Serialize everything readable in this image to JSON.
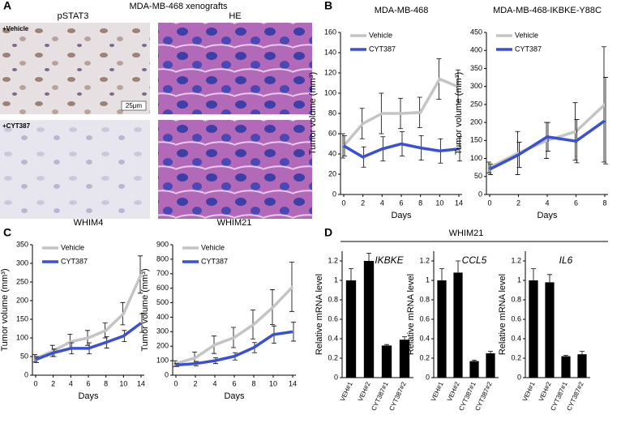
{
  "figure": {
    "panel_labels": [
      "A",
      "B",
      "C",
      "D"
    ],
    "panel_a": {
      "title": "MDA-MB-468 xenografts",
      "columns": [
        "pSTAT3",
        "HE"
      ],
      "rows": [
        "+Vehicle",
        "+CYT387"
      ],
      "scale_bar": "25μm"
    },
    "panel_d_title": "WHIM21"
  },
  "chart_data": [
    {
      "type": "line",
      "title": "MDA-MB-468",
      "x_label": "Days",
      "y_label": "Tumor volume (mm³)",
      "categories": [
        "0",
        "2",
        "4",
        "6",
        "8",
        "10",
        "14"
      ],
      "ylim": [
        0,
        160
      ],
      "yticks": [
        0,
        20,
        40,
        60,
        80,
        100,
        120,
        140,
        160
      ],
      "series": [
        {
          "name": "Vehicle",
          "color": "#c4c4c4",
          "values": [
            48,
            70,
            80,
            80,
            81,
            114,
            106
          ],
          "errors": [
            12,
            15,
            20,
            15,
            15,
            20,
            17
          ]
        },
        {
          "name": "CYT387",
          "color": "#3a4fd8",
          "values": [
            48,
            37,
            45,
            50,
            46,
            43,
            45
          ],
          "errors": [
            10,
            10,
            12,
            12,
            12,
            12,
            12
          ]
        }
      ]
    },
    {
      "type": "line",
      "title": "MDA-MB-468-IKBKE-Y88C",
      "x_label": "Days",
      "y_label": "Tumor volume (mm³)",
      "categories": [
        "0",
        "2",
        "4",
        "6",
        "8"
      ],
      "ylim": [
        0,
        450
      ],
      "yticks": [
        0,
        50,
        100,
        150,
        200,
        250,
        300,
        350,
        400,
        450
      ],
      "series": [
        {
          "name": "Vehicle",
          "color": "#c4c4c4",
          "values": [
            75,
            115,
            150,
            175,
            250
          ],
          "errors": [
            15,
            60,
            50,
            80,
            160
          ]
        },
        {
          "name": "CYT387",
          "color": "#3a4fd8",
          "values": [
            70,
            110,
            160,
            148,
            205
          ],
          "errors": [
            15,
            35,
            40,
            60,
            120
          ]
        }
      ]
    },
    {
      "type": "line",
      "title": "WHIM4",
      "x_label": "Days",
      "y_label": "Tumor volume (mm³)",
      "categories": [
        "0",
        "2",
        "4",
        "6",
        "8",
        "10",
        "14"
      ],
      "ylim": [
        0,
        350
      ],
      "yticks": [
        0,
        50,
        100,
        150,
        200,
        250,
        300,
        350
      ],
      "series": [
        {
          "name": "Vehicle",
          "color": "#c4c4c4",
          "values": [
            45,
            65,
            90,
            100,
            120,
            165,
            270
          ],
          "errors": [
            10,
            15,
            20,
            20,
            20,
            30,
            50
          ]
        },
        {
          "name": "CYT387",
          "color": "#3a4fd8",
          "values": [
            42,
            60,
            72,
            72,
            88,
            105,
            140
          ],
          "errors": [
            8,
            10,
            15,
            15,
            15,
            15,
            25
          ]
        }
      ]
    },
    {
      "type": "line",
      "title": "WHIM21",
      "x_label": "Days",
      "y_label": "Tumor volume (mm³)",
      "categories": [
        "0",
        "2",
        "4",
        "6",
        "8",
        "10",
        "14"
      ],
      "ylim": [
        0,
        900
      ],
      "yticks": [
        0,
        100,
        200,
        300,
        400,
        500,
        600,
        700,
        800,
        900
      ],
      "series": [
        {
          "name": "Vehicle",
          "color": "#c4c4c4",
          "values": [
            80,
            120,
            210,
            260,
            350,
            470,
            610
          ],
          "errors": [
            20,
            40,
            60,
            70,
            100,
            120,
            170
          ]
        },
        {
          "name": "CYT387",
          "color": "#3a4fd8",
          "values": [
            70,
            80,
            100,
            130,
            190,
            280,
            300
          ],
          "errors": [
            10,
            15,
            20,
            25,
            35,
            60,
            65
          ]
        }
      ]
    },
    {
      "type": "bar",
      "annotation": "IKBKE",
      "y_label": "Relative mRNA level",
      "color": "#000000",
      "categories": [
        "VEH#1",
        "VEH#2",
        "CYT387#1",
        "CYT387#2"
      ],
      "ylim": [
        0,
        1.3
      ],
      "yticks": [
        0,
        0.2,
        0.4,
        0.6,
        0.8,
        1,
        1.2
      ],
      "values": [
        1.0,
        1.2,
        0.33,
        0.39
      ],
      "errors": [
        0.12,
        0.08,
        0.01,
        0.03
      ]
    },
    {
      "type": "bar",
      "annotation": "CCL5",
      "y_label": "Relative mRNA level",
      "color": "#000000",
      "categories": [
        "VEH#1",
        "VEH#2",
        "CYT387#1",
        "CYT387#2"
      ],
      "ylim": [
        0,
        1.3
      ],
      "yticks": [
        0,
        0.2,
        0.4,
        0.6,
        0.8,
        1,
        1.2
      ],
      "values": [
        1.0,
        1.08,
        0.17,
        0.25
      ],
      "errors": [
        0.12,
        0.12,
        0.01,
        0.02
      ]
    },
    {
      "type": "bar",
      "annotation": "IL6",
      "y_label": "Relative mRNA level",
      "color": "#000000",
      "categories": [
        "VEH#1",
        "VEH#2",
        "CYT387#1",
        "CYT387#2"
      ],
      "ylim": [
        0,
        1.3
      ],
      "yticks": [
        0,
        0.2,
        0.4,
        0.6,
        0.8,
        1,
        1.2
      ],
      "values": [
        1.0,
        0.98,
        0.22,
        0.24
      ],
      "errors": [
        0.12,
        0.08,
        0.01,
        0.03
      ]
    }
  ]
}
